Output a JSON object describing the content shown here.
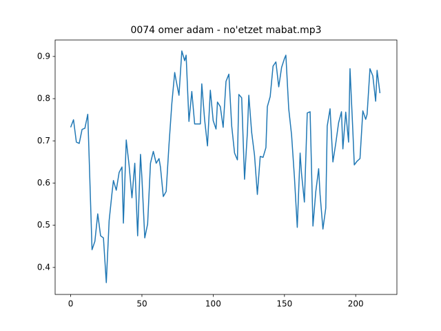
{
  "chart_data": {
    "type": "line",
    "title": "0074 omer adam - no'etzet mabat.mp3",
    "x": [
      0,
      2,
      4,
      6,
      8,
      10,
      12,
      13,
      15,
      17,
      19,
      21,
      23,
      25,
      27,
      29,
      30,
      32,
      34,
      36,
      37,
      39,
      41,
      43,
      45,
      47,
      49,
      50,
      52,
      54,
      56,
      58,
      60,
      62,
      63,
      65,
      67,
      69,
      71,
      73,
      74,
      76,
      78,
      80,
      81,
      83,
      85,
      87,
      91,
      92,
      94,
      96,
      98,
      100,
      102,
      103,
      105,
      107,
      109,
      111,
      113,
      115,
      117,
      118,
      120,
      122,
      124,
      125,
      127,
      129,
      131,
      133,
      135,
      137,
      138,
      140,
      142,
      144,
      146,
      148,
      150,
      151,
      153,
      155,
      157,
      159,
      161,
      162,
      164,
      166,
      168,
      170,
      172,
      174,
      175,
      177,
      179,
      180,
      182,
      184,
      186,
      188,
      190,
      191,
      193,
      195,
      196,
      198,
      199,
      201,
      203,
      205,
      207,
      208,
      210,
      212,
      214,
      215,
      217
    ],
    "values": [
      0.732,
      0.75,
      0.697,
      0.694,
      0.727,
      0.73,
      0.763,
      0.658,
      0.442,
      0.462,
      0.527,
      0.475,
      0.47,
      0.364,
      0.511,
      0.576,
      0.606,
      0.583,
      0.625,
      0.638,
      0.505,
      0.702,
      0.642,
      0.565,
      0.647,
      0.475,
      0.668,
      0.612,
      0.47,
      0.503,
      0.647,
      0.675,
      0.647,
      0.658,
      0.638,
      0.568,
      0.58,
      0.691,
      0.789,
      0.862,
      0.843,
      0.808,
      0.913,
      0.89,
      0.903,
      0.746,
      0.817,
      0.74,
      0.74,
      0.835,
      0.75,
      0.688,
      0.82,
      0.748,
      0.728,
      0.792,
      0.781,
      0.732,
      0.841,
      0.858,
      0.735,
      0.671,
      0.655,
      0.81,
      0.802,
      0.609,
      0.72,
      0.808,
      0.72,
      0.666,
      0.573,
      0.663,
      0.661,
      0.684,
      0.781,
      0.805,
      0.877,
      0.887,
      0.828,
      0.874,
      0.895,
      0.903,
      0.776,
      0.714,
      0.614,
      0.495,
      0.671,
      0.622,
      0.555,
      0.766,
      0.769,
      0.498,
      0.58,
      0.634,
      0.573,
      0.491,
      0.541,
      0.735,
      0.776,
      0.65,
      0.694,
      0.743,
      0.769,
      0.681,
      0.768,
      0.697,
      0.871,
      0.723,
      0.643,
      0.652,
      0.658,
      0.771,
      0.751,
      0.763,
      0.871,
      0.854,
      0.794,
      0.867,
      0.813
    ],
    "color": "#1f77b4",
    "xlim": [
      -10.9,
      228.9
    ],
    "xticks": [
      0,
      50,
      100,
      150,
      200
    ],
    "ylim": [
      0.336,
      0.939
    ],
    "yticks": [
      0.4,
      0.5,
      0.6,
      0.7,
      0.8,
      0.9
    ]
  }
}
